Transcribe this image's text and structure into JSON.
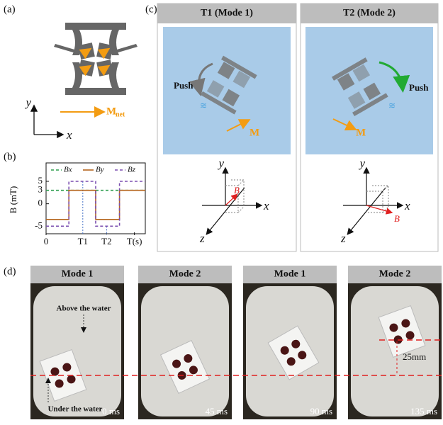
{
  "panel_a": {
    "label": "(a)",
    "axis_y": "y",
    "axis_x": "x",
    "moment": "M",
    "moment_sub": "net"
  },
  "chart_data": {
    "type": "line",
    "panel_label": "(b)",
    "y_label": "B (mT)",
    "x": [
      0,
      2.3,
      2.3,
      5,
      5,
      7.4,
      7.4,
      10
    ],
    "xlim": [
      0,
      10
    ],
    "xticks": [
      0,
      {
        "value": 3.7,
        "label": "T1"
      },
      {
        "value": 6.1,
        "label": "T2"
      },
      {
        "value": 8.9,
        "label": "T(s)"
      }
    ],
    "ylim": [
      -7,
      8
    ],
    "yticks": [
      -5,
      0,
      3,
      5
    ],
    "series": [
      {
        "name": "Bx",
        "color": "#2e9e4f",
        "dash": "4,3",
        "values": [
          3,
          3,
          3,
          3,
          3,
          3,
          3,
          3
        ]
      },
      {
        "name": "By",
        "color": "#b5651d",
        "dash": "none",
        "values": [
          -3.5,
          -3.5,
          3,
          3,
          -3.5,
          -3.5,
          3,
          3
        ]
      },
      {
        "name": "Bz",
        "color": "#7b4fb0",
        "dash": "4,3",
        "values": [
          -5,
          -5,
          5,
          5,
          -5,
          -5,
          5,
          5
        ]
      }
    ]
  },
  "panel_c": {
    "label": "(c)",
    "left": {
      "title": "T1 (Mode 1)",
      "push": "Push",
      "moment": "M",
      "y": "y",
      "x": "x",
      "z": "z",
      "b": "B"
    },
    "right": {
      "title": "T2 (Mode 2)",
      "push": "Push",
      "moment": "M",
      "y": "y",
      "x": "x",
      "z": "z",
      "b": "B"
    }
  },
  "panel_d": {
    "label": "(d)",
    "above": "Above the water",
    "under": "Under the water",
    "scale": "25mm",
    "frames": [
      {
        "title": "Mode 1",
        "time": "0 ms"
      },
      {
        "title": "Mode 2",
        "time": "45 ms"
      },
      {
        "title": "Mode 1",
        "time": "90 ms"
      },
      {
        "title": "Mode 2",
        "time": "135 ms"
      }
    ]
  }
}
